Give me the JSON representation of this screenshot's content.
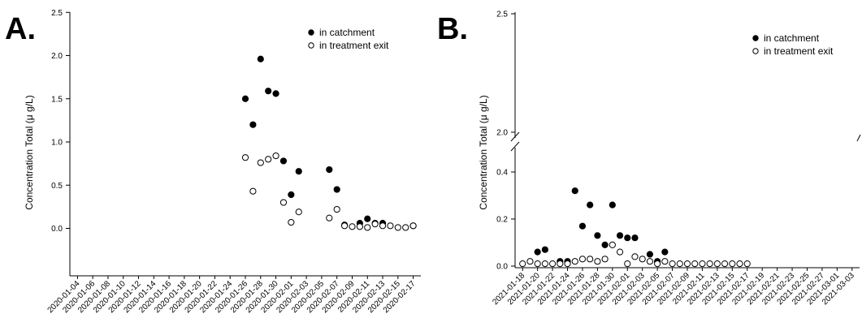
{
  "chart_data": [
    {
      "type": "scatter",
      "panel_label": "A.",
      "title": "",
      "xlabel": "",
      "ylabel": "Concentration Total (μ g/L)",
      "ylim": [
        -0.45,
        2.5
      ],
      "yticks": [
        "0.0",
        "0.5",
        "1.0",
        "1.5",
        "2.0",
        "2.5"
      ],
      "yticks_values": [
        0,
        0.5,
        1.0,
        1.5,
        2.0,
        2.5
      ],
      "x_tick_labels": [
        "2020-01-04",
        "2020-01-06",
        "2020-01-08",
        "2020-01-10",
        "2020-01-12",
        "2020-01-14",
        "2020-01-16",
        "2020-01-18",
        "2020-01-20",
        "2020-01-22",
        "2020-01-24",
        "2020-01-26",
        "2020-01-28",
        "2020-01-30",
        "2020-02-01",
        "2020-02-03",
        "2020-02-05",
        "2020-02-07",
        "2020-02-09",
        "2020-02-11",
        "2020-02-13",
        "2020-02-15",
        "2020-02-17"
      ],
      "xlim": [
        "2020-01-03",
        "2020-02-18"
      ],
      "legend_position": "top-right",
      "grid": false,
      "series": [
        {
          "name": "in catchment",
          "marker": "filled-circle",
          "color": "#000000",
          "x": [
            "2020-01-26",
            "2020-01-27",
            "2020-01-28",
            "2020-01-29",
            "2020-01-30",
            "2020-01-31",
            "2020-02-01",
            "2020-02-02",
            "2020-02-06",
            "2020-02-07",
            "2020-02-08",
            "2020-02-10",
            "2020-02-11",
            "2020-02-12",
            "2020-02-13",
            "2020-02-17"
          ],
          "y": [
            1.5,
            1.2,
            1.96,
            1.59,
            1.56,
            0.78,
            0.39,
            0.66,
            0.68,
            0.45,
            0.04,
            0.06,
            0.11,
            0.06,
            0.06,
            0.03
          ]
        },
        {
          "name": "in treatment exit",
          "marker": "open-circle",
          "color": "#000000",
          "x": [
            "2020-01-26",
            "2020-01-27",
            "2020-01-28",
            "2020-01-29",
            "2020-01-30",
            "2020-01-31",
            "2020-02-01",
            "2020-02-02",
            "2020-02-06",
            "2020-02-07",
            "2020-02-08",
            "2020-02-09",
            "2020-02-10",
            "2020-02-11",
            "2020-02-12",
            "2020-02-13",
            "2020-02-14",
            "2020-02-15",
            "2020-02-16",
            "2020-02-17"
          ],
          "y": [
            0.82,
            0.43,
            0.76,
            0.8,
            0.84,
            0.3,
            0.07,
            0.19,
            0.12,
            0.22,
            0.03,
            0.02,
            0.02,
            0.01,
            0.05,
            0.03,
            0.03,
            0.01,
            0.01,
            0.03
          ]
        }
      ]
    },
    {
      "type": "scatter",
      "panel_label": "B.",
      "title": "",
      "xlabel": "",
      "ylabel": "Concentration Total (μ g/L)",
      "ylim_lower": [
        0,
        0.48
      ],
      "ylim_upper": [
        2.0,
        2.5
      ],
      "axis_break": "between 0.48 and 2.0",
      "yticks_lower": [
        "0.0",
        "0.2",
        "0.4"
      ],
      "yticks_lower_values": [
        0,
        0.2,
        0.4
      ],
      "yticks_upper": [
        "2.0",
        "2.5"
      ],
      "yticks_upper_values": [
        2.0,
        2.5
      ],
      "x_tick_labels": [
        "2021-01-18",
        "2021-01-20",
        "2021-01-22",
        "2021-01-24",
        "2021-01-26",
        "2021-01-28",
        "2021-01-30",
        "2021-02-01",
        "2021-02-03",
        "2021-02-05",
        "2021-02-07",
        "2021-02-09",
        "2021-02-11",
        "2021-02-13",
        "2021-02-15",
        "2021-02-17",
        "2021-02-19",
        "2021-02-21",
        "2021-02-23",
        "2021-02-25",
        "2021-02-27",
        "2021-03-01",
        "2021-03-03"
      ],
      "xlim": [
        "2021-01-17",
        "2021-03-04"
      ],
      "legend_position": "top-right",
      "grid": false,
      "series": [
        {
          "name": "in catchment",
          "marker": "filled-circle",
          "color": "#000000",
          "x": [
            "2021-01-20",
            "2021-01-21",
            "2021-01-23",
            "2021-01-24",
            "2021-01-25",
            "2021-01-26",
            "2021-01-27",
            "2021-01-28",
            "2021-01-29",
            "2021-01-30",
            "2021-01-31",
            "2021-02-01",
            "2021-02-02",
            "2021-02-04",
            "2021-02-05",
            "2021-02-06"
          ],
          "y": [
            0.06,
            0.07,
            0.02,
            0.02,
            0.32,
            0.17,
            0.26,
            0.13,
            0.09,
            0.26,
            0.13,
            0.12,
            0.12,
            0.05,
            0.02,
            0.06
          ]
        },
        {
          "name": "in treatment exit",
          "marker": "open-circle",
          "color": "#000000",
          "x": [
            "2021-01-18",
            "2021-01-19",
            "2021-01-20",
            "2021-01-21",
            "2021-01-22",
            "2021-01-23",
            "2021-01-24",
            "2021-01-25",
            "2021-01-26",
            "2021-01-27",
            "2021-01-28",
            "2021-01-29",
            "2021-01-30",
            "2021-01-31",
            "2021-02-01",
            "2021-02-02",
            "2021-02-03",
            "2021-02-04",
            "2021-02-05",
            "2021-02-06",
            "2021-02-07",
            "2021-02-08",
            "2021-02-09",
            "2021-02-10",
            "2021-02-11",
            "2021-02-12",
            "2021-02-13",
            "2021-02-14",
            "2021-02-15",
            "2021-02-16",
            "2021-02-17"
          ],
          "y": [
            0.01,
            0.02,
            0.01,
            0.01,
            0.01,
            0.01,
            0.01,
            0.02,
            0.03,
            0.03,
            0.02,
            0.03,
            0.09,
            0.06,
            0.01,
            0.04,
            0.03,
            0.02,
            0.01,
            0.02,
            0.01,
            0.01,
            0.01,
            0.01,
            0.01,
            0.01,
            0.01,
            0.01,
            0.01,
            0.01,
            0.01
          ]
        }
      ]
    }
  ]
}
